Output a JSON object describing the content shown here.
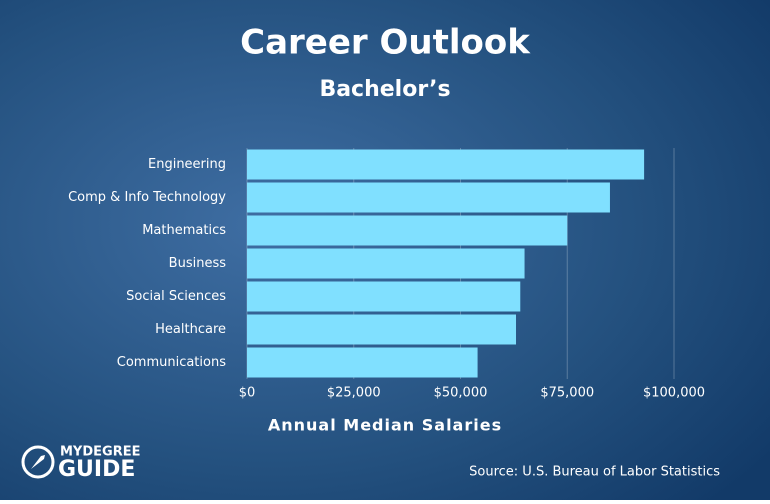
{
  "chart_data": {
    "type": "bar",
    "orientation": "horizontal",
    "title": "Career Outlook",
    "subtitle": "Bachelor’s",
    "x_label": "Annual Median Salaries",
    "source": "Source: U.S. Bureau of Labor Statistics",
    "categories": [
      "Engineering",
      "Comp & Info Technology",
      "Mathematics",
      "Business",
      "Social Sciences",
      "Healthcare",
      "Communications"
    ],
    "values": [
      93000,
      85000,
      75000,
      65000,
      64000,
      63000,
      54000
    ],
    "color": "#80e0ff",
    "xlim": [
      0,
      100000
    ],
    "xticks": [
      {
        "value": 0,
        "label": "$0"
      },
      {
        "value": 25000,
        "label": "$25,000"
      },
      {
        "value": 50000,
        "label": "$50,000"
      },
      {
        "value": 75000,
        "label": "$75,000"
      },
      {
        "value": 100000,
        "label": "$100,000"
      }
    ],
    "grid": true
  },
  "logo": {
    "line1": "MYDEGREE",
    "line2": "GUIDE"
  }
}
